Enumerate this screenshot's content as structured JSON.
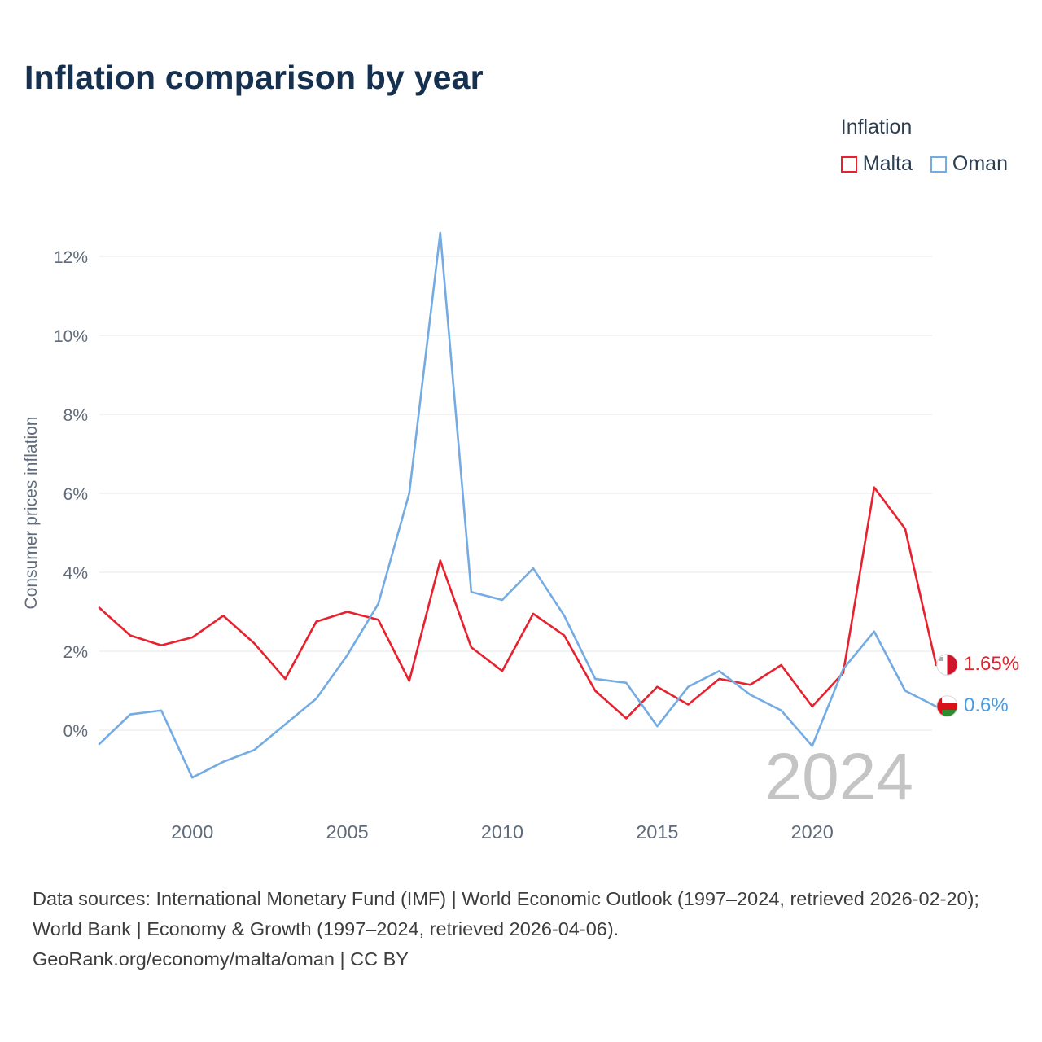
{
  "title": "Inflation comparison by year",
  "legend": {
    "title": "Inflation",
    "items": [
      {
        "label": "Malta",
        "color": "#e8212e"
      },
      {
        "label": "Oman",
        "color": "#74abe2"
      }
    ]
  },
  "watermark": "2024",
  "end_labels": [
    {
      "series": "Malta",
      "text": "1.65%",
      "color": "#e8212e"
    },
    {
      "series": "Oman",
      "text": "0.6%",
      "color": "#4a9be0"
    }
  ],
  "footer": {
    "line1": "Data sources: International Monetary Fund (IMF) | World Economic Outlook (1997–2024, retrieved 2026-02-20); World Bank | Economy & Growth (1997–2024, retrieved 2026-04-06).",
    "line2": "GeoRank.org/economy/malta/oman | CC BY"
  },
  "chart_data": {
    "type": "line",
    "title": "Inflation comparison by year",
    "xlabel": "",
    "ylabel": "Consumer prices inflation",
    "x": [
      1997,
      1998,
      1999,
      2000,
      2001,
      2002,
      2003,
      2004,
      2005,
      2006,
      2007,
      2008,
      2009,
      2010,
      2011,
      2012,
      2013,
      2014,
      2015,
      2016,
      2017,
      2018,
      2019,
      2020,
      2021,
      2022,
      2023,
      2024
    ],
    "series": [
      {
        "name": "Malta",
        "color": "#e8212e",
        "values": [
          3.1,
          2.4,
          2.15,
          2.35,
          2.9,
          2.2,
          1.3,
          2.75,
          3.0,
          2.8,
          1.25,
          4.3,
          2.1,
          1.5,
          2.95,
          2.4,
          1.0,
          0.3,
          1.1,
          0.65,
          1.3,
          1.15,
          1.65,
          0.6,
          1.45,
          6.15,
          5.1,
          1.65
        ]
      },
      {
        "name": "Oman",
        "color": "#74abe2",
        "values": [
          -0.35,
          0.4,
          0.5,
          -1.2,
          -0.8,
          -0.5,
          0.15,
          0.8,
          1.9,
          3.2,
          6.0,
          12.6,
          3.5,
          3.3,
          4.1,
          2.9,
          1.3,
          1.2,
          0.1,
          1.1,
          1.5,
          0.9,
          0.5,
          -0.4,
          1.55,
          2.5,
          1.0,
          0.6
        ]
      }
    ],
    "ylim": [
      -2,
      13
    ],
    "yticks": [
      0,
      2,
      4,
      6,
      8,
      10,
      12
    ],
    "xticks": [
      2000,
      2005,
      2010,
      2015,
      2020
    ],
    "grid": true,
    "legend_position": "top-right"
  }
}
